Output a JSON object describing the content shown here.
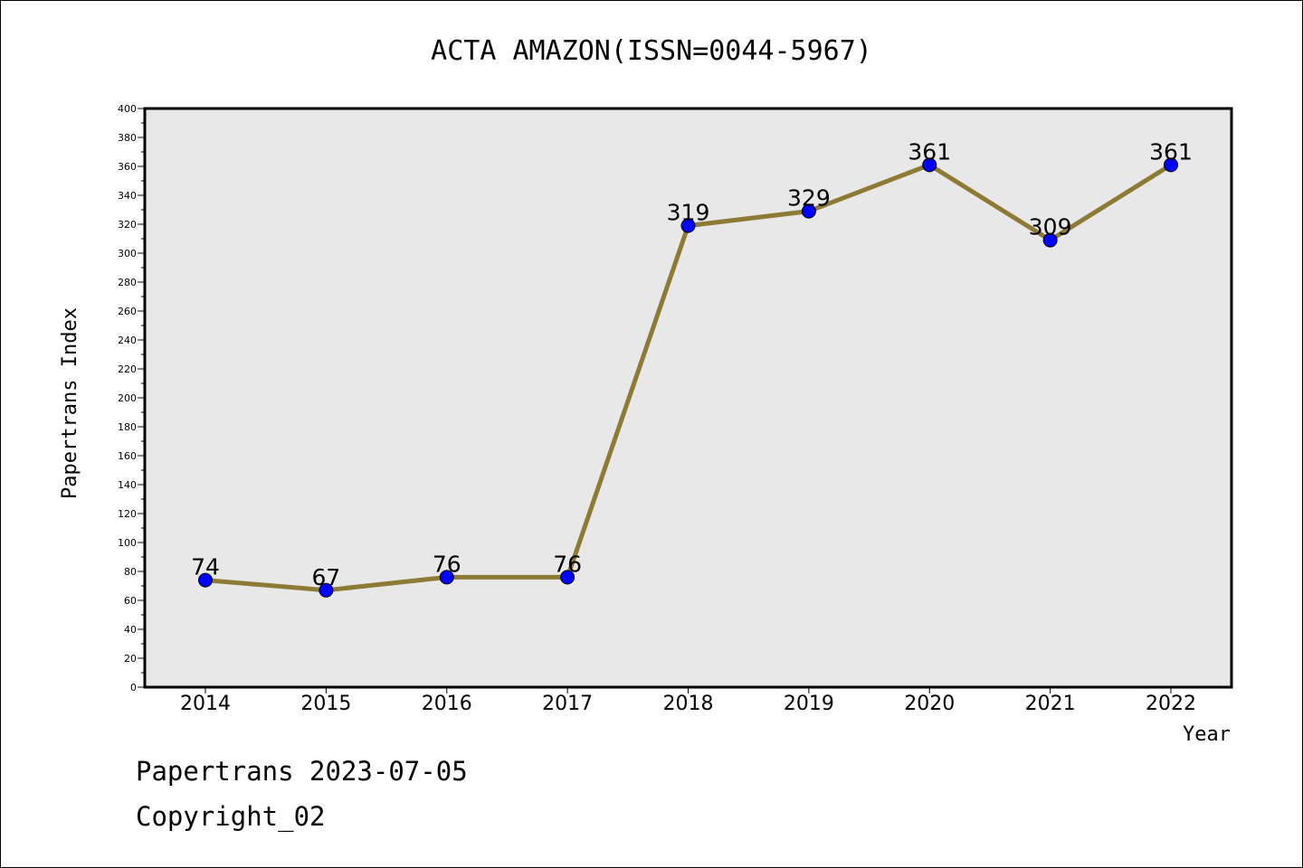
{
  "chart_data": {
    "type": "line",
    "title": "ACTA AMAZON(ISSN=0044-5967)",
    "xlabel": "Year",
    "ylabel": "Papertrans Index",
    "categories": [
      "2014",
      "2015",
      "2016",
      "2017",
      "2018",
      "2019",
      "2020",
      "2021",
      "2022"
    ],
    "series": [
      {
        "values": [
          74,
          67,
          76,
          76,
          319,
          329,
          361,
          309,
          361
        ]
      }
    ],
    "ylim": [
      0,
      400
    ],
    "yticks": [
      0,
      20,
      40,
      60,
      80,
      100,
      120,
      140,
      160,
      180,
      200,
      220,
      240,
      260,
      280,
      300,
      320,
      340,
      360,
      380,
      400
    ],
    "grid": false,
    "legend": "none",
    "colors": {
      "line": "#8c7a35",
      "marker": "#0000ff",
      "plot_background": "#e8e8e8"
    }
  },
  "footer": {
    "date_line": "Papertrans 2023-07-05",
    "copyright_line": "Copyright_02"
  }
}
